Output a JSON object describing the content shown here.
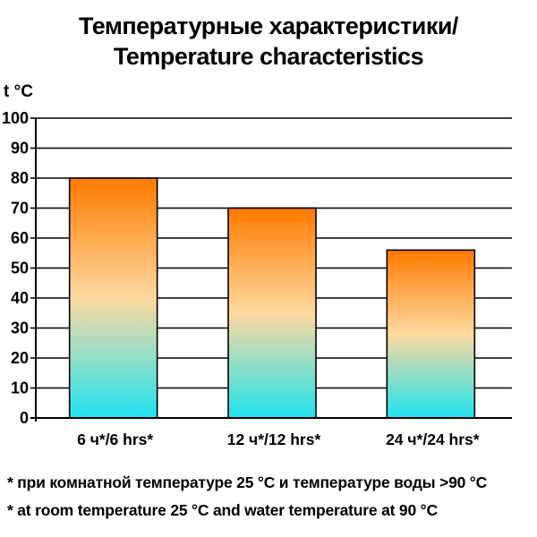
{
  "chart_data": {
    "type": "bar",
    "title_line1": "Температурные характеристики/",
    "title_line2": "Temperature characteristics",
    "ylabel": "t °C",
    "xlabel": "",
    "categories": [
      "6 ч*/6 hrs*",
      "12 ч*/12 hrs*",
      "24 ч*/24 hrs*"
    ],
    "values": [
      80,
      70,
      56
    ],
    "ylim": [
      0,
      100
    ],
    "yticks": [
      0,
      10,
      20,
      30,
      40,
      50,
      60,
      70,
      80,
      90,
      100
    ],
    "grid": true,
    "bar_gradient": [
      "#ff7a00",
      "#ffd9a0",
      "#1fe3f0"
    ]
  },
  "footnotes": [
    "* при комнатной температуре 25 °С и температуре воды >90 °С",
    "* at room temperature 25 °C and water temperature at 90 °C"
  ]
}
